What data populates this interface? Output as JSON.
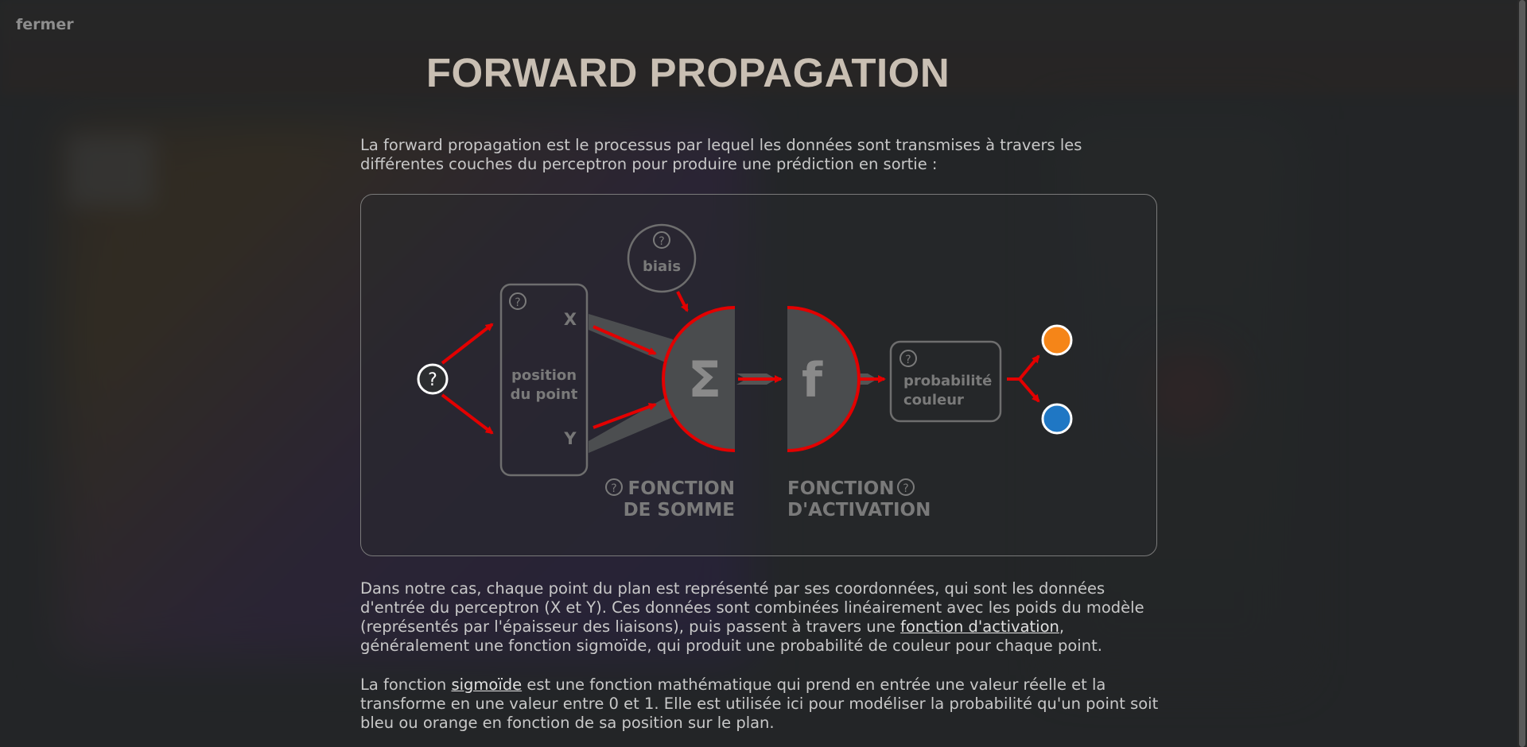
{
  "close_label": "fermer",
  "title": "FORWARD PROPAGATION",
  "intro": "La forward propagation est le processus par lequel les données sont transmises à travers les différentes couches du perceptron pour produire une prédiction en sortie :",
  "diagram": {
    "help_glyph": "?",
    "bias_label": "biais",
    "input_label_line1": "position",
    "input_label_line2": "du point",
    "x_label": "X",
    "y_label": "Y",
    "sum_symbol": "Σ",
    "activation_symbol": "f",
    "output_label_line1": "probabilité",
    "output_label_line2": "couleur",
    "sum_caption_line1": "FONCTION",
    "sum_caption_line2": "DE SOMME",
    "activation_caption_line1": "FONCTION",
    "activation_caption_line2": "D'ACTIVATION",
    "colors": {
      "arrow": "#e30000",
      "node_fill": "#4a4c4e",
      "orange_output": "#f58518",
      "blue_output": "#1f77c4"
    }
  },
  "para2": {
    "before_link": "Dans notre cas, chaque point du plan est représenté par ses coordonnées, qui sont les données d'entrée du perceptron (X et Y). Ces données sont combinées linéairement avec les poids du modèle (représentés par l'épaisseur des liaisons), puis passent à travers une ",
    "link": "fonction d'activation",
    "after_link": ", généralement une fonction sigmoïde, qui produit une probabilité de couleur pour chaque point."
  },
  "para3": {
    "before_link": "La fonction ",
    "link": "sigmoïde",
    "after_link": " est une fonction mathématique qui prend en entrée une valeur réelle et la transforme en une valeur entre 0 et 1. Elle est utilisée ici pour modéliser la probabilité qu'un point soit bleu ou orange en fonction de sa position sur le plan."
  }
}
